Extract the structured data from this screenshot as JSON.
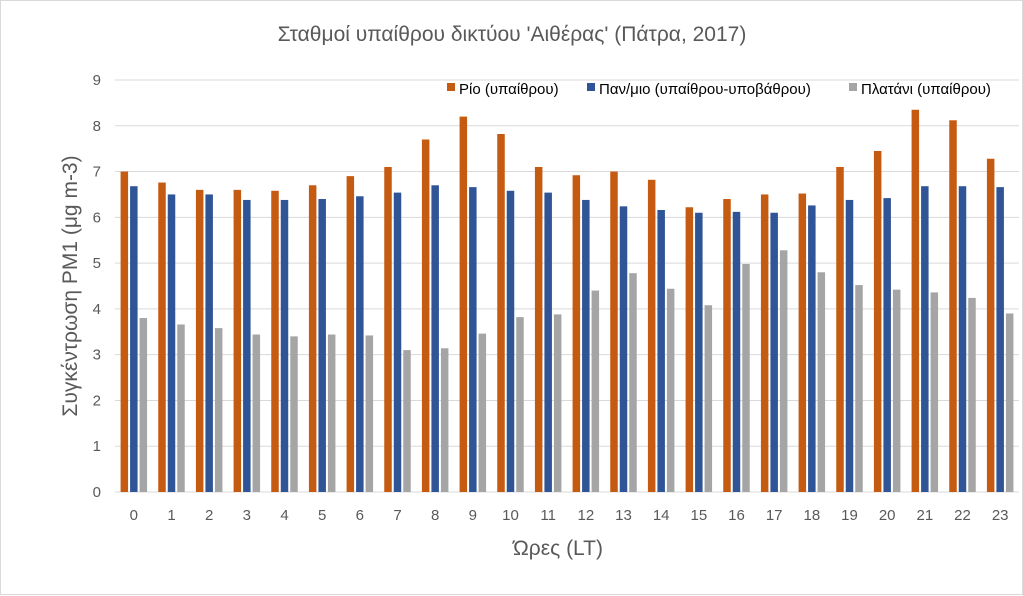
{
  "chart_data": {
    "type": "bar",
    "title": "Σταθμοί υπαίθρου δικτύου 'Αιθέρας' (Πάτρα, 2017)",
    "xlabel": "Ώρες (LT)",
    "ylabel": "Συγκέντρωση PM1 (μg m-3)",
    "ylim": [
      0,
      9
    ],
    "yticks": [
      0,
      1,
      2,
      3,
      4,
      5,
      6,
      7,
      8,
      9
    ],
    "grid": true,
    "legend_position": "top-right",
    "categories": [
      "0",
      "1",
      "2",
      "3",
      "4",
      "5",
      "6",
      "7",
      "8",
      "9",
      "10",
      "11",
      "12",
      "13",
      "14",
      "15",
      "16",
      "17",
      "18",
      "19",
      "20",
      "21",
      "22",
      "23"
    ],
    "series": [
      {
        "name": "Ρίο (υπαίθρου)",
        "color": "#c55a11",
        "values": [
          7.0,
          6.76,
          6.6,
          6.6,
          6.58,
          6.7,
          6.9,
          7.1,
          7.7,
          8.2,
          7.82,
          7.1,
          6.92,
          7.0,
          6.82,
          6.22,
          6.4,
          6.5,
          6.52,
          7.1,
          7.45,
          8.35,
          8.12,
          7.28
        ]
      },
      {
        "name": "Παν/μιο (υπαίθρου-υποβάθρου)",
        "color": "#2f5597",
        "values": [
          6.68,
          6.5,
          6.5,
          6.38,
          6.38,
          6.4,
          6.46,
          6.54,
          6.7,
          6.66,
          6.58,
          6.54,
          6.38,
          6.24,
          6.16,
          6.1,
          6.12,
          6.1,
          6.26,
          6.38,
          6.42,
          6.68,
          6.68,
          6.66
        ]
      },
      {
        "name": "Πλατάνι (υπαίθρου)",
        "color": "#a5a5a5",
        "values": [
          3.8,
          3.66,
          3.58,
          3.44,
          3.4,
          3.44,
          3.42,
          3.1,
          3.14,
          3.46,
          3.82,
          3.88,
          4.4,
          4.78,
          4.44,
          4.08,
          4.98,
          5.28,
          4.8,
          4.52,
          4.42,
          4.36,
          4.24,
          3.9
        ]
      }
    ]
  }
}
